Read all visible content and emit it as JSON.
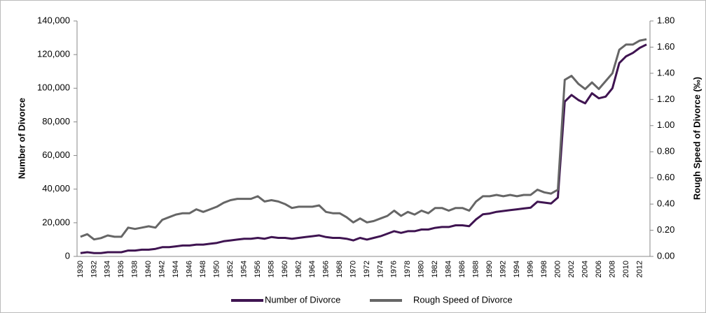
{
  "chart_data": {
    "type": "line",
    "categories": [
      "1930",
      null,
      "1932",
      null,
      "1934",
      null,
      "1936",
      null,
      "1938",
      null,
      "1940",
      null,
      "1942",
      null,
      "1944",
      null,
      "1946",
      null,
      "1948",
      null,
      "1950",
      null,
      "1952",
      null,
      "1954",
      null,
      "1956",
      null,
      "1958",
      null,
      "1960",
      null,
      "1962",
      null,
      "1964",
      null,
      "1966",
      null,
      "1968",
      null,
      "1970",
      null,
      "1972",
      null,
      "1974",
      null,
      "1976",
      null,
      "1978",
      null,
      "1980",
      null,
      "1982",
      null,
      "1984",
      null,
      "1986",
      null,
      "1988",
      null,
      "1990",
      null,
      "1992",
      null,
      "1994",
      null,
      "1996",
      null,
      "1998",
      null,
      "2000",
      null,
      "2002",
      null,
      "2004",
      null,
      "2006",
      null,
      "2008",
      null,
      "2010",
      null,
      "2012",
      null
    ],
    "ylabel": "Number of Divorce",
    "y2label": "Rough Speed of Divorce (‰)",
    "ylim": [
      0,
      140000
    ],
    "yticks": [
      0,
      {
        "value": 20000,
        "label": "20,000"
      },
      {
        "value": 40000,
        "label": "40,000"
      },
      {
        "value": 60000,
        "label": "60,000"
      },
      {
        "value": 80000,
        "label": "80,000"
      },
      {
        "value": 100000,
        "label": "100,000"
      },
      {
        "value": 120000,
        "label": "120,000"
      },
      {
        "value": 140000,
        "label": "140,000"
      }
    ],
    "y2lim": [
      0,
      1.8
    ],
    "y2ticks": [
      {
        "value": 0,
        "label": "0.00"
      },
      {
        "value": 0.2,
        "label": "0.20"
      },
      {
        "value": 0.4,
        "label": "0.40"
      },
      {
        "value": 0.6,
        "label": "0.60"
      },
      {
        "value": 0.8,
        "label": "0.80"
      },
      {
        "value": 1.0,
        "label": "1.00"
      },
      {
        "value": 1.2,
        "label": "1.20"
      },
      {
        "value": 1.4,
        "label": "1.40"
      },
      {
        "value": 1.6,
        "label": "1.60"
      },
      {
        "value": 1.8,
        "label": "1.80"
      }
    ],
    "legend": "bottom",
    "series": [
      {
        "name": "Number of Divorce",
        "color": "#3f1451",
        "values": [
          2000,
          2500,
          2000,
          2000,
          2500,
          2500,
          2500,
          3500,
          3500,
          4000,
          4000,
          4500,
          5500,
          5500,
          6000,
          6500,
          6500,
          7000,
          7000,
          7500,
          8000,
          9000,
          9500,
          10000,
          10500,
          10500,
          11000,
          10500,
          11500,
          11000,
          11000,
          10500,
          11000,
          11500,
          12000,
          12500,
          11500,
          11000,
          11000,
          10500,
          9500,
          11000,
          10000,
          11000,
          12000,
          13500,
          15000,
          14000,
          15000,
          15000,
          16000,
          16000,
          17000,
          17500,
          17500,
          18500,
          18500,
          18000,
          22000,
          25000,
          25500,
          26500,
          27000,
          27500,
          28000,
          28500,
          29000,
          32500,
          32000,
          31500,
          35000,
          92000,
          96000,
          93000,
          91000,
          97000,
          94000,
          95000,
          100000,
          115000,
          119000,
          121000,
          124000,
          126000
        ]
      },
      {
        "name": "Rough Speed of Divorce",
        "color": "#666666",
        "axis": "y2",
        "values": [
          0.15,
          0.17,
          0.13,
          0.14,
          0.16,
          0.15,
          0.15,
          0.22,
          0.21,
          0.22,
          0.23,
          0.22,
          0.28,
          0.3,
          0.32,
          0.33,
          0.33,
          0.36,
          0.34,
          0.36,
          0.38,
          0.41,
          0.43,
          0.44,
          0.44,
          0.44,
          0.46,
          0.42,
          0.43,
          0.42,
          0.4,
          0.37,
          0.38,
          0.38,
          0.38,
          0.39,
          0.34,
          0.33,
          0.33,
          0.3,
          0.26,
          0.29,
          0.26,
          0.27,
          0.29,
          0.31,
          0.35,
          0.31,
          0.34,
          0.32,
          0.35,
          0.33,
          0.37,
          0.37,
          0.35,
          0.37,
          0.37,
          0.35,
          0.42,
          0.46,
          0.46,
          0.47,
          0.46,
          0.47,
          0.46,
          0.47,
          0.47,
          0.51,
          0.49,
          0.48,
          0.51,
          1.35,
          1.38,
          1.32,
          1.28,
          1.33,
          1.28,
          1.34,
          1.4,
          1.58,
          1.62,
          1.62,
          1.65,
          1.66
        ]
      }
    ]
  }
}
